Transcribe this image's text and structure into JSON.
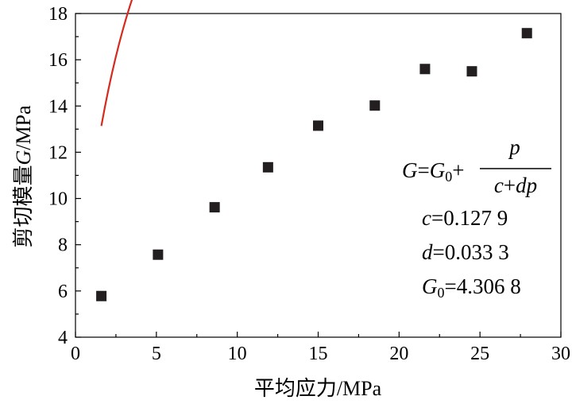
{
  "chart_data": {
    "type": "scatter",
    "xlabel": "平均应力/MPa",
    "ylabel_main": "剪切模量",
    "ylabel_symbol": "G",
    "ylabel_unit": "/MPa",
    "xlim": [
      0,
      30
    ],
    "ylim": [
      4,
      18
    ],
    "x_ticks": [
      "0",
      "5",
      "10",
      "15",
      "20",
      "25",
      "30"
    ],
    "y_ticks": [
      "4",
      "6",
      "8",
      "10",
      "12",
      "14",
      "16",
      "18"
    ],
    "grid": false,
    "points": [
      {
        "x": 1.6,
        "y": 5.78
      },
      {
        "x": 5.1,
        "y": 7.57
      },
      {
        "x": 8.6,
        "y": 9.62
      },
      {
        "x": 11.9,
        "y": 11.35
      },
      {
        "x": 15.0,
        "y": 13.15
      },
      {
        "x": 18.5,
        "y": 14.02
      },
      {
        "x": 21.6,
        "y": 15.6
      },
      {
        "x": 24.5,
        "y": 15.5
      },
      {
        "x": 27.9,
        "y": 17.15
      }
    ],
    "marker_color": "#231f20",
    "fit": {
      "color": "#d42b1e",
      "x_range": [
        1.6,
        27.9
      ],
      "G0": 4.3068,
      "c": 0.1279,
      "d": 0.0333
    },
    "annotation": {
      "eq_G": "G",
      "eq_eq": "=",
      "eq_G0": "G",
      "eq_sub0": "0",
      "eq_plus": "+",
      "eq_num": "p",
      "eq_den_c": "c",
      "eq_den_plus": "+",
      "eq_den_dp": "dp",
      "c_sym": "c",
      "c_val": "=0.127 9",
      "d_sym": "d",
      "d_val": "=0.033 3",
      "g0_sym": "G",
      "g0_sub": "0",
      "g0_val": "=4.306 8"
    }
  }
}
